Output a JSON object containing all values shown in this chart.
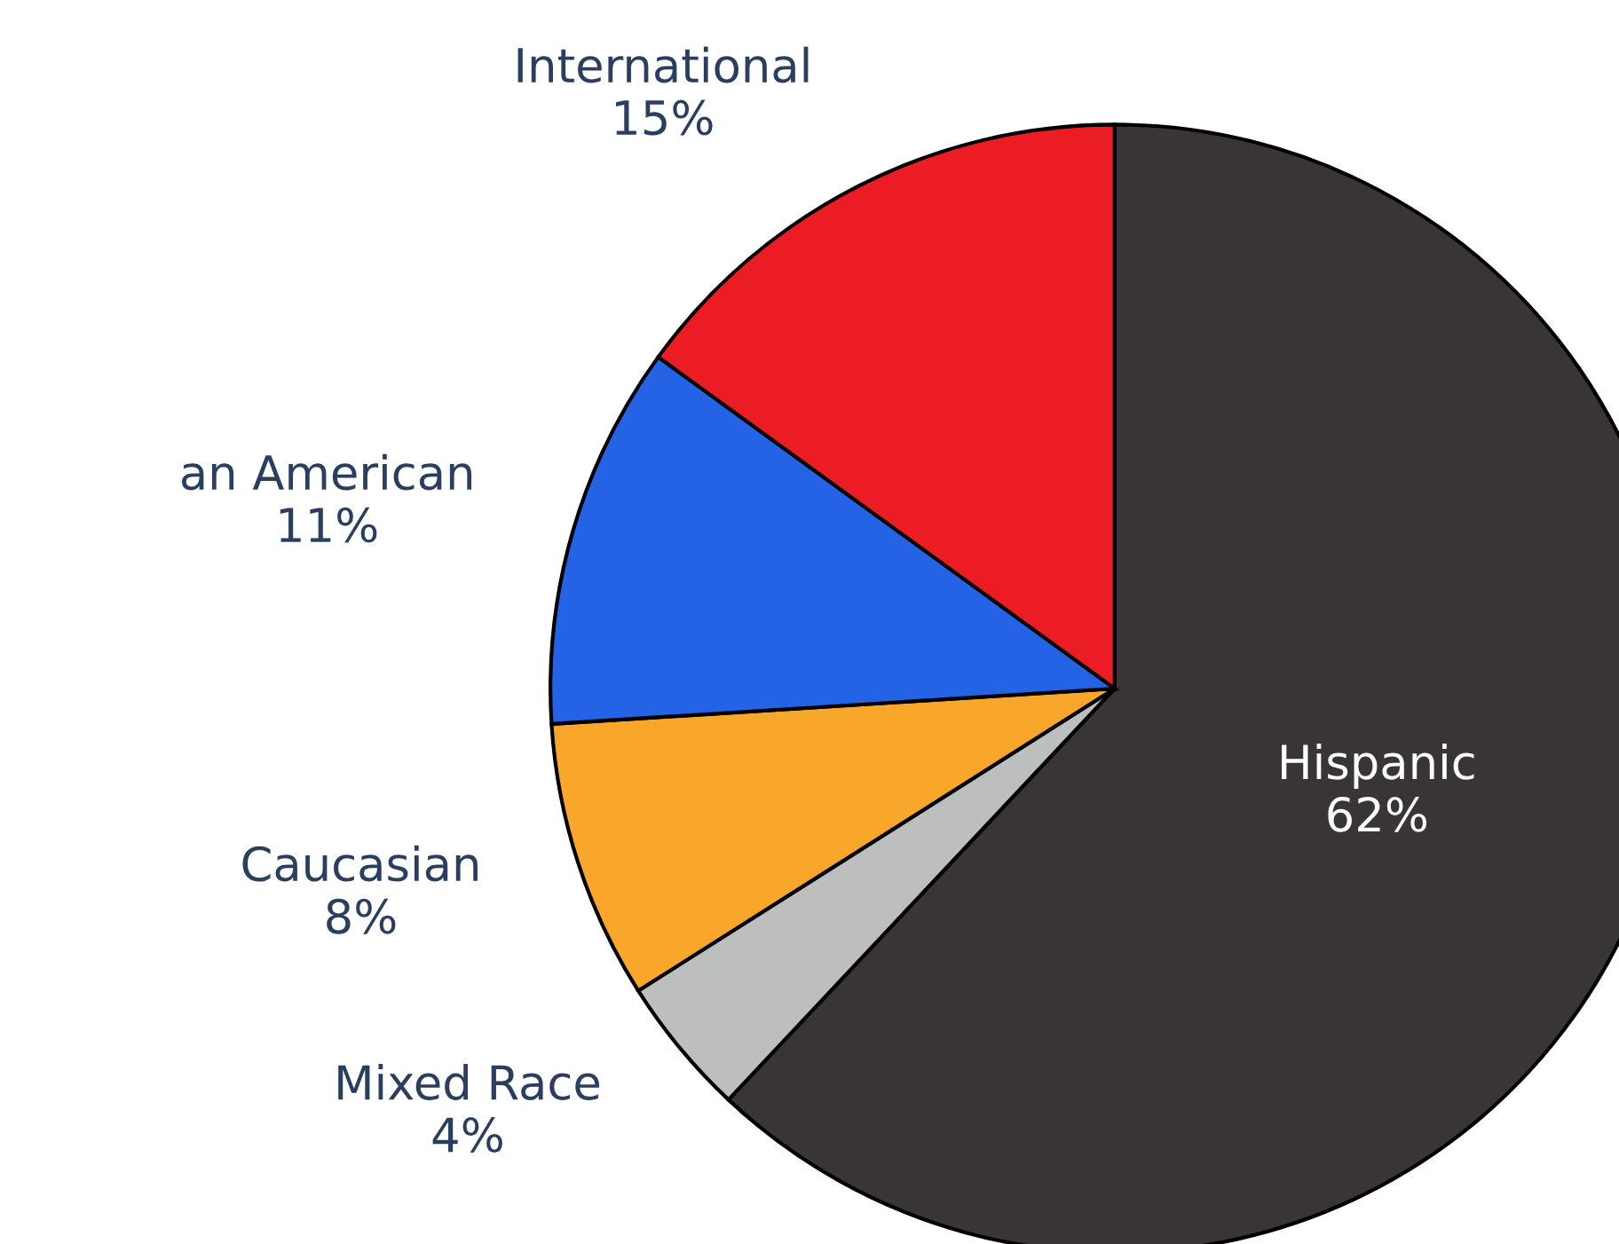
{
  "chart_data": {
    "type": "pie",
    "categories": [
      "Hispanic",
      "Mixed Race",
      "Caucasian",
      "an American",
      "International"
    ],
    "values": [
      62,
      4,
      8,
      11,
      15
    ],
    "colors": [
      "#393536",
      "#bcbfbe",
      "#f9a72b",
      "#2563e6",
      "#ec1c24"
    ],
    "value_labels": [
      "62%",
      "4%",
      "8%",
      "11%",
      "15%"
    ]
  }
}
